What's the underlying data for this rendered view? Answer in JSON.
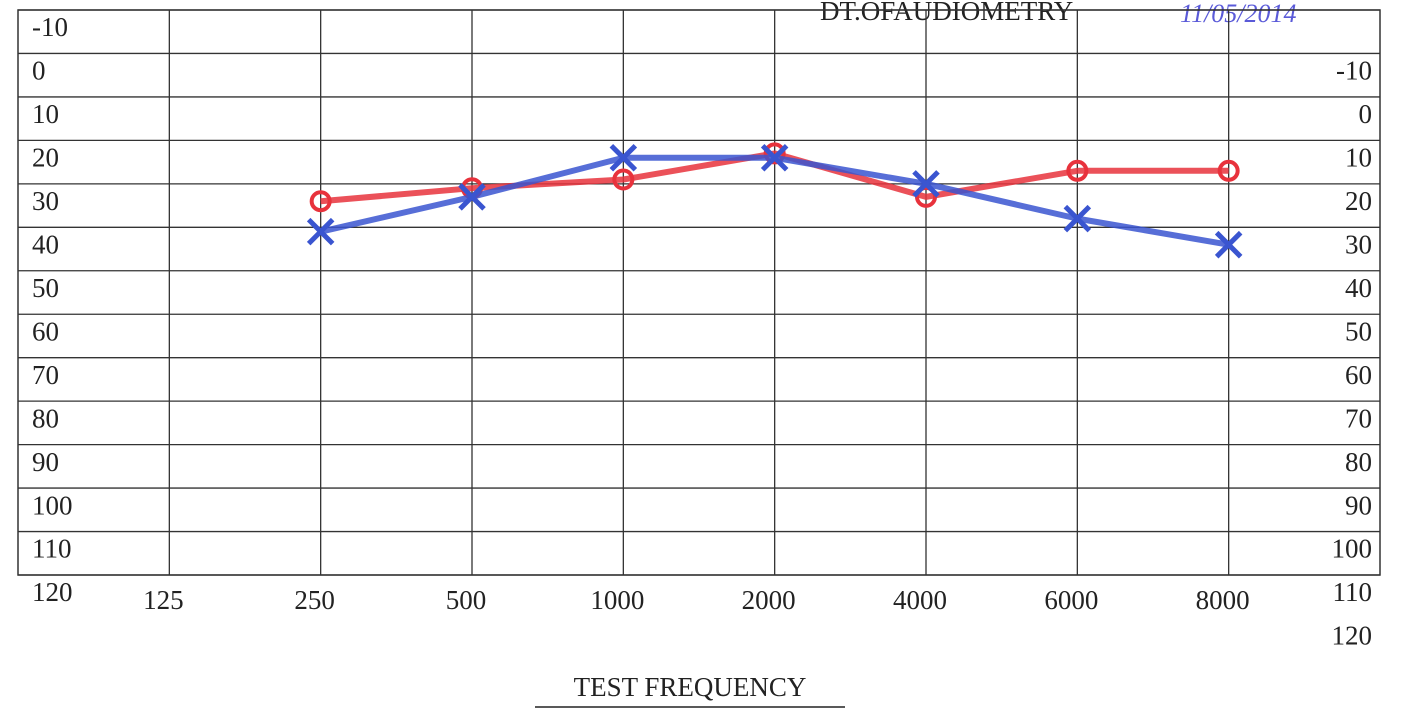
{
  "chart_data": {
    "type": "line",
    "title": "DT.OFAUDIOMETRY",
    "subtitle": "11/05/2014",
    "x_label": "TEST FREQUENCY",
    "categories": [
      "125",
      "250",
      "500",
      "1000",
      "2000",
      "4000",
      "6000",
      "8000"
    ],
    "series": [
      {
        "color": "#e8323c",
        "marker": "circle",
        "values": [
          null,
          34,
          31,
          29,
          23,
          33,
          27,
          27
        ]
      },
      {
        "color": "#3a55d0",
        "marker": "x",
        "values": [
          null,
          41,
          33,
          24,
          24,
          30,
          38,
          44
        ]
      }
    ],
    "ylim": [
      -10,
      120
    ],
    "yticks": [
      -10,
      0,
      10,
      20,
      30,
      40,
      50,
      60,
      70,
      80,
      90,
      100,
      110,
      120
    ],
    "y2lim": [
      -20,
      110
    ],
    "y2ticks": [
      -10,
      0,
      10,
      20,
      30,
      40,
      50,
      60,
      70,
      80,
      90,
      100,
      110,
      120
    ],
    "grid": true
  }
}
